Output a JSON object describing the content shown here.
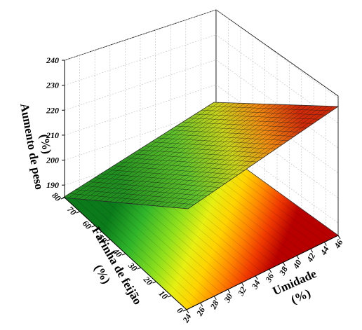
{
  "chart_data": {
    "type": "surface3d",
    "title": "",
    "zlabel_line1": "Aumento de peso",
    "zlabel_line2": "(%)",
    "xlabel_line1": "Umidade",
    "xlabel_line2": "(%)",
    "ylabel_line1": "Farinha de feijão",
    "ylabel_line2": "(%)",
    "x_ticks": [
      "24",
      "26",
      "28",
      "30",
      "32",
      "34",
      "36",
      "38",
      "40",
      "42",
      "44",
      "46"
    ],
    "y_ticks": [
      "0",
      "10",
      "20",
      "30",
      "40",
      "50",
      "60",
      "70",
      "80"
    ],
    "z_ticks": [
      "190",
      "200",
      "210",
      "220",
      "230",
      "240"
    ],
    "x_range": [
      24,
      46
    ],
    "y_range": [
      0,
      80
    ],
    "z_range": [
      185,
      240
    ],
    "grid": true,
    "colormap": [
      "#0a7a1a",
      "#2fb52a",
      "#8ee01c",
      "#e6ef12",
      "#ffd200",
      "#ff8a00",
      "#f03a00",
      "#b80000"
    ],
    "surface_corners": [
      {
        "x": 24,
        "y": 80,
        "z": 190
      },
      {
        "x": 24,
        "y": 0,
        "z": 200
      },
      {
        "x": 46,
        "y": 0,
        "z": 237
      },
      {
        "x": 46,
        "y": 80,
        "z": 238
      }
    ]
  }
}
